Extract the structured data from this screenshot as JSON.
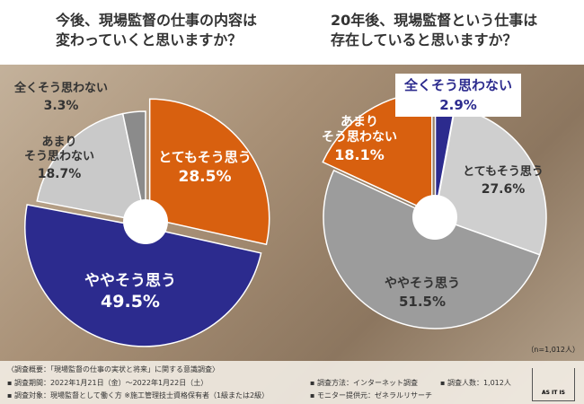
{
  "chart_data": [
    {
      "type": "pie",
      "title": [
        "今後、現場監督の仕事の内容は",
        "変わっていくと思いますか？"
      ],
      "categories": [
        "とてもそう思う",
        "ややそう思う",
        "あまり\nそう思わない",
        "全くそう思わない"
      ],
      "values": [
        28.5,
        49.5,
        18.7,
        3.3
      ],
      "value_labels": [
        "28.5%",
        "49.5%",
        "18.7%",
        "3.3%"
      ],
      "colors": [
        "#d8600f",
        "#2c2b8e",
        "#c9c9c9",
        "#8b8b8b"
      ]
    },
    {
      "type": "pie",
      "title": [
        "20年後、現場監督という仕事は",
        "存在していると思いますか？"
      ],
      "categories": [
        "全くそう思わない",
        "とてもそう思う",
        "ややそう思う",
        "あまり\nそう思わない"
      ],
      "values": [
        2.9,
        27.6,
        51.5,
        18.1
      ],
      "value_labels": [
        "2.9%",
        "27.6%",
        "51.5%",
        "18.1%"
      ],
      "colors": [
        "#2c2b8e",
        "#cfcfcf",
        "#9c9c9c",
        "#d8600f"
      ],
      "note": "（n=1,012人）"
    }
  ],
  "footer": {
    "heading": "〈調査概要：「現場監督の仕事の実状と将来」に関する意識調査〉",
    "items": [
      "▪ 調査期間：2022年1月21日（金）〜2022年1月22日（土）",
      "▪ 調査対象：現場監督として働く方 ※施工管理技士資格保有者（1級または2級）",
      "▪ 調査方法：インターネット調査",
      "▪ 調査人数：1,012人",
      "▪ モニター提供元：ゼネラルリサーチ"
    ],
    "logo": "AS IT IS"
  }
}
